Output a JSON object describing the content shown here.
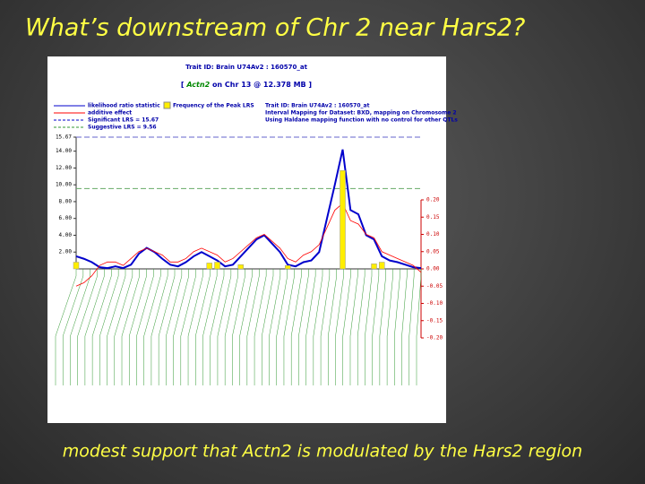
{
  "slide": {
    "title": "What’s downstream of Chr 2 near Hars2?",
    "caption": "modest support that Actn2 is modulated by the Hars2 region"
  },
  "chart_data": {
    "type": "line",
    "header": "Trait ID: Brain U74Av2 : 160570_at",
    "subheader_gene": "Actn2",
    "subheader_rest": "on Chr 13 @ 12.378 MB ]",
    "subheader_open": "[",
    "info": [
      "Trait ID: Brain U74Av2 : 160570_at",
      "Interval Mapping for Dataset: BXD, mapping on Chromosome 2",
      "Using Haldane mapping function with no control for other QTLs"
    ],
    "legend": [
      "likelihood ratio statistic",
      "additive effect",
      "Significant LRS = 15.67",
      "Suggestive LRS = 9.56",
      "Frequency of the Peak LRS"
    ],
    "significant_lrs": 15.67,
    "suggestive_lrs": 9.56,
    "categories": [
      null,
      null,
      null,
      null,
      null,
      null,
      null,
      null,
      null,
      null,
      null,
      null,
      null,
      null,
      null,
      null,
      null,
      null,
      null,
      null,
      null,
      null,
      null,
      null,
      null,
      null,
      null,
      null,
      null,
      null,
      null,
      null,
      null,
      null,
      null,
      null,
      null,
      null,
      null,
      null,
      null,
      null,
      null,
      null,
      null
    ],
    "series": [
      {
        "name": "likelihood ratio statistic",
        "color": "#0000cc",
        "values": [
          1.5,
          1.2,
          0.8,
          0.2,
          0.1,
          0.3,
          0.1,
          0.5,
          1.8,
          2.5,
          2.0,
          1.2,
          0.5,
          0.3,
          0.8,
          1.5,
          2.0,
          1.5,
          1.0,
          0.3,
          0.5,
          1.5,
          2.5,
          3.5,
          4.0,
          3.0,
          2.0,
          0.5,
          0.3,
          0.8,
          1.0,
          2.0,
          6.0,
          10.0,
          14.2,
          7.0,
          6.5,
          4.0,
          3.5,
          1.5,
          1.0,
          0.8,
          0.5,
          0.2,
          0.1
        ]
      },
      {
        "name": "additive effect",
        "color": "#ff0000",
        "axis": "y2",
        "values": [
          -0.05,
          -0.04,
          -0.02,
          0.01,
          0.02,
          0.02,
          0.01,
          0.03,
          0.05,
          0.06,
          0.05,
          0.04,
          0.02,
          0.02,
          0.03,
          0.05,
          0.06,
          0.05,
          0.04,
          0.02,
          0.03,
          0.05,
          0.07,
          0.09,
          0.1,
          0.08,
          0.06,
          0.03,
          0.02,
          0.04,
          0.05,
          0.07,
          0.12,
          0.17,
          0.19,
          0.14,
          0.13,
          0.1,
          0.09,
          0.05,
          0.04,
          0.03,
          0.02,
          0.01,
          -0.01
        ]
      },
      {
        "name": "Frequency of the Peak LRS",
        "color": "#ffee00",
        "type": "bar",
        "values": [
          0.8,
          0,
          0,
          0,
          0,
          0,
          0,
          0,
          0,
          0,
          0,
          0,
          0,
          0,
          0,
          0,
          0,
          0.7,
          0.8,
          0,
          0,
          0.5,
          0,
          0,
          0,
          0,
          0,
          0.4,
          0,
          0,
          0,
          0,
          0,
          0,
          11.7,
          0,
          0,
          0,
          0.6,
          0.8,
          0,
          0,
          0,
          0,
          0
        ]
      }
    ],
    "ylim": [
      0,
      15.67
    ],
    "yticks": [
      {
        "value": 2,
        "label": "2.00"
      },
      {
        "value": 4,
        "label": "4.00"
      },
      {
        "value": 6,
        "label": "6.00"
      },
      {
        "value": 8,
        "label": "8.00"
      },
      {
        "value": 10,
        "label": "10.00"
      },
      {
        "value": 12,
        "label": "12.00"
      },
      {
        "value": 14,
        "label": "14.00"
      },
      15.67
    ],
    "y2lim": [
      -0.2,
      0.2
    ],
    "y2ticks": [
      {
        "value": 0.2,
        "label": "0.20"
      },
      {
        "value": 0.15,
        "label": "0.15"
      },
      {
        "value": 0.1,
        "label": "0.10"
      },
      {
        "value": 0.05,
        "label": "0.05"
      },
      {
        "value": 0,
        "label": "0.00"
      },
      {
        "value": -0.05,
        "label": "-0.05"
      },
      {
        "value": -0.1,
        "label": "-0.10"
      },
      {
        "value": -0.15,
        "label": "-0.15"
      },
      {
        "value": -0.2,
        "label": "-0.20"
      }
    ]
  }
}
